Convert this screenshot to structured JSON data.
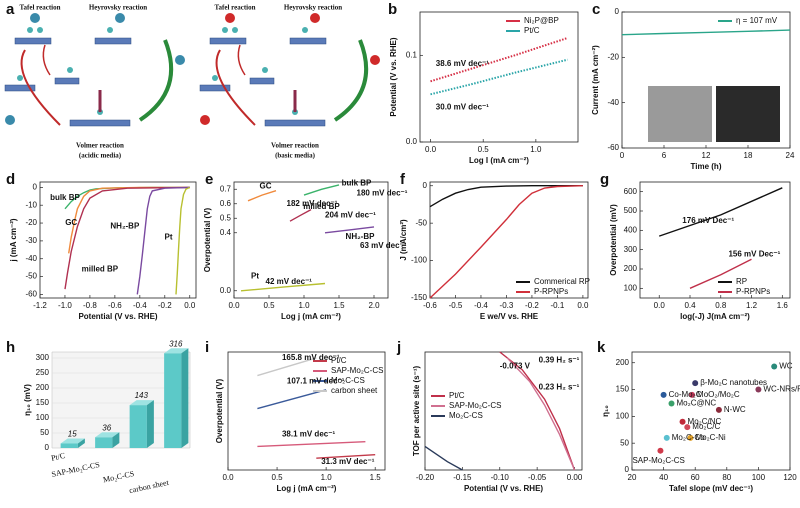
{
  "chart_data": [
    {
      "type": "diagram",
      "panel": "a",
      "schemes": [
        {
          "tafel": "Tafel reaction",
          "heyrovsky": "Heyrovsky reaction",
          "volmer": "Volmer reaction",
          "media": "(acidic media)"
        },
        {
          "tafel": "Tafel reaction",
          "heyrovsky": "Heyrovsky reaction",
          "volmer": "Volmer reaction",
          "media": "(basic media)"
        }
      ]
    },
    {
      "type": "line",
      "panel": "b",
      "xlabel": "Log I (mA cm⁻²)",
      "ylabel": "Potential (V vs. RHE)",
      "xlim": [
        -0.1,
        1.4
      ],
      "xticks": [
        {
          "value": 0,
          "label": "0.0"
        },
        0.5,
        {
          "value": 1,
          "label": "1.0"
        }
      ],
      "ylim": [
        0,
        0.15
      ],
      "yticks": [
        {
          "value": 0,
          "label": "0.0"
        },
        0.1
      ],
      "legend": "upper right",
      "series": [
        {
          "name": "Ni₂P@BP",
          "color": "#d62f45",
          "style": "dotted",
          "x": [
            0,
            0.4,
            0.8,
            1.3
          ],
          "values": [
            0.07,
            0.085,
            0.1,
            0.12
          ]
        },
        {
          "name": "Pt/C",
          "color": "#2aa5a8",
          "style": "dotted",
          "x": [
            0,
            0.4,
            0.8,
            1.3
          ],
          "values": [
            0.055,
            0.067,
            0.08,
            0.095
          ]
        }
      ],
      "annotations": [
        "38.6 mV dec⁻¹",
        "30.0 mV dec⁻¹"
      ]
    },
    {
      "type": "line",
      "panel": "c",
      "xlabel": "Time (h)",
      "ylabel": "Current (mA cm⁻²)",
      "xlim": [
        0,
        24
      ],
      "xticks": [
        0,
        6,
        12,
        18,
        24
      ],
      "ylim": [
        -60,
        0
      ],
      "yticks": [
        0,
        -20,
        -40,
        -60
      ],
      "legend": "upper right",
      "series": [
        {
          "name": "η = 107 mV",
          "color": "#2aa58a",
          "x": [
            0,
            6,
            12,
            18,
            24
          ],
          "values": [
            -10,
            -9.5,
            -9,
            -8.5,
            -8
          ]
        }
      ]
    },
    {
      "type": "line",
      "panel": "d",
      "xlabel": "Potential (V vs. RHE)",
      "ylabel": "j (mA cm⁻²)",
      "xlim": [
        -1.2,
        0.05
      ],
      "xticks": [
        -1.2,
        {
          "value": -1,
          "label": "-1.0"
        },
        -0.8,
        -0.6,
        -0.4,
        -0.2,
        {
          "value": 0,
          "label": "0.0"
        }
      ],
      "ylim": [
        -62,
        3
      ],
      "yticks": [
        0,
        -10,
        -20,
        -30,
        -40,
        -50,
        -60
      ],
      "series": [
        {
          "name": "bulk BP",
          "color": "#3bb36b",
          "x": [
            -1.0,
            -0.95,
            -0.9,
            -0.85,
            -0.8,
            -0.75,
            -0.6,
            -0.3,
            0
          ],
          "values": [
            -12,
            -8,
            -5,
            -3,
            -1.5,
            -0.8,
            -0.3,
            -0.1,
            0
          ]
        },
        {
          "name": "GC",
          "color": "#f08a3c",
          "x": [
            -0.97,
            -0.95,
            -0.92,
            -0.9,
            -0.85,
            -0.8,
            -0.7,
            -0.4,
            0
          ],
          "values": [
            -37,
            -28,
            -18,
            -12,
            -5,
            -2,
            -0.5,
            -0.1,
            0
          ]
        },
        {
          "name": "milled BP",
          "color": "#b03050",
          "x": [
            -1.0,
            -0.98,
            -0.95,
            -0.9,
            -0.85,
            -0.8,
            -0.7,
            -0.5,
            0
          ],
          "values": [
            -57,
            -48,
            -36,
            -22,
            -12,
            -6,
            -2,
            -0.5,
            0
          ]
        },
        {
          "name": "NH₂-BP",
          "color": "#7a4aa0",
          "x": [
            -0.42,
            -0.4,
            -0.38,
            -0.36,
            -0.34,
            -0.32,
            -0.3,
            -0.2,
            0
          ],
          "values": [
            -60,
            -50,
            -38,
            -25,
            -12,
            -5,
            -2,
            -0.5,
            0
          ]
        },
        {
          "name": "Pt",
          "color": "#b8c030",
          "x": [
            -0.11,
            -0.1,
            -0.09,
            -0.08,
            -0.07,
            -0.05,
            -0.03,
            0
          ],
          "values": [
            -60,
            -48,
            -35,
            -22,
            -12,
            -4,
            -1,
            0
          ]
        }
      ]
    },
    {
      "type": "line",
      "panel": "e",
      "xlabel": "Log j (mA cm⁻²)",
      "ylabel": "Overpotential (V)",
      "xlim": [
        0,
        2.2
      ],
      "xticks": [
        {
          "value": 0,
          "label": "0.0"
        },
        0.5,
        {
          "value": 1,
          "label": "1.0"
        },
        1.5,
        {
          "value": 2,
          "label": "2.0"
        }
      ],
      "ylim": [
        -0.05,
        0.75
      ],
      "yticks": [
        {
          "value": 0,
          "label": "0.0"
        },
        0.4,
        0.5,
        0.6,
        0.7
      ],
      "series": [
        {
          "name": "GC",
          "color": "#f08a3c",
          "x": [
            0.2,
            0.4,
            0.6
          ],
          "values": [
            0.62,
            0.66,
            0.69
          ]
        },
        {
          "name": "bulk BP",
          "color": "#3bb36b",
          "x": [
            1.0,
            1.25,
            1.5
          ],
          "values": [
            0.66,
            0.7,
            0.73
          ]
        },
        {
          "name": "milled BP",
          "color": "#b03050",
          "x": [
            0.8,
            0.95,
            1.1
          ],
          "values": [
            0.48,
            0.52,
            0.56
          ]
        },
        {
          "name": "NH₂-BP",
          "color": "#7a4aa0",
          "x": [
            1.3,
            1.65,
            2.0
          ],
          "values": [
            0.4,
            0.42,
            0.44
          ]
        },
        {
          "name": "Pt",
          "color": "#b8c030",
          "x": [
            0.1,
            0.7,
            1.3
          ],
          "values": [
            0.0,
            0.025,
            0.05
          ]
        }
      ],
      "annotations": [
        "182 mV dec⁻¹",
        "180 mV dec⁻¹",
        "204 mV dec⁻¹",
        "63 mV dec⁻¹",
        "42 mV dec⁻¹"
      ]
    },
    {
      "type": "line",
      "panel": "f",
      "xlabel": "E we/V vs. RHE",
      "ylabel": "J (mA/cm²)",
      "xlim": [
        -0.6,
        0.02
      ],
      "xticks": [
        -0.6,
        -0.5,
        -0.4,
        -0.3,
        -0.2,
        -0.1,
        {
          "value": 0,
          "label": "0.0"
        }
      ],
      "ylim": [
        -150,
        5
      ],
      "yticks": [
        0,
        -50,
        -100,
        -150
      ],
      "legend": "lower right",
      "series": [
        {
          "name": "Commerical RP",
          "color": "#111111",
          "x": [
            -0.6,
            -0.55,
            -0.5,
            -0.45,
            -0.4,
            -0.3,
            -0.2,
            0
          ],
          "values": [
            -28,
            -18,
            -10,
            -5,
            -2,
            -0.5,
            0,
            0
          ]
        },
        {
          "name": "P-RPNPs",
          "color": "#d0303a",
          "x": [
            -0.6,
            -0.5,
            -0.4,
            -0.3,
            -0.25,
            -0.2,
            -0.15,
            -0.1,
            0
          ],
          "values": [
            -150,
            -118,
            -82,
            -45,
            -25,
            -10,
            -3,
            -1,
            0
          ]
        }
      ]
    },
    {
      "type": "line",
      "panel": "g",
      "xlabel": "log(-J) J(mA cm⁻²)",
      "ylabel": "Overpotential (mV)",
      "xlim": [
        -0.25,
        1.7
      ],
      "xticks": [
        {
          "value": 0,
          "label": "0.0"
        },
        0.4,
        0.8,
        1.2,
        1.6
      ],
      "ylim": [
        50,
        650
      ],
      "yticks": [
        100,
        200,
        300,
        400,
        500,
        600
      ],
      "legend": "lower right",
      "series": [
        {
          "name": "RP",
          "color": "#111111",
          "x": [
            0,
            0.8,
            1.6
          ],
          "values": [
            370,
            480,
            620
          ]
        },
        {
          "name": "P-RPNPs",
          "color": "#c0304a",
          "x": [
            0.4,
            0.8,
            1.2
          ],
          "values": [
            100,
            170,
            250
          ]
        }
      ],
      "annotations": [
        "176 mV Dec⁻¹",
        "156 mV Dec⁻¹"
      ]
    },
    {
      "type": "bar3d",
      "panel": "h",
      "ylabel": "η₁₀ (mV)",
      "color": "#5cc9c8",
      "categories": [
        "Pt/C",
        "SAP-Mo₂C-CS",
        "Mo₂C-CS",
        "carbon sheet"
      ],
      "values": [
        15,
        36,
        143,
        316
      ],
      "ylim": [
        0,
        320
      ],
      "yticks": [
        0,
        50,
        100,
        150,
        200,
        250,
        300
      ]
    },
    {
      "type": "line",
      "panel": "i",
      "xlabel": "Log j (mA cm⁻²)",
      "ylabel": "Overpotential (V)",
      "xlim": [
        0,
        1.6
      ],
      "xticks": [
        {
          "value": 0,
          "label": "0.0"
        },
        0.5,
        {
          "value": 1,
          "label": "1.0"
        },
        1.5
      ],
      "ylim": [
        0,
        1
      ],
      "yticks": [],
      "legend": "upper right",
      "series": [
        {
          "name": "Pt/C",
          "color": "#c23a4a",
          "x": [
            0.9,
            1.5
          ],
          "values": [
            0.1,
            0.13
          ]
        },
        {
          "name": "SAP-Mo₂C-CS",
          "color": "#d65a7a",
          "x": [
            0.3,
            1.4
          ],
          "values": [
            0.2,
            0.24
          ]
        },
        {
          "name": "Mo₂C-CS",
          "color": "#3a5a9a",
          "x": [
            0.3,
            1.0
          ],
          "values": [
            0.52,
            0.68
          ]
        },
        {
          "name": "carbon sheet",
          "color": "#c8c8c8",
          "x": [
            0.3,
            0.9
          ],
          "values": [
            0.8,
            0.95
          ]
        }
      ],
      "annotations": [
        "165.8 mV dec⁻¹",
        "107.1 mV dec⁻¹",
        "38.1 mV dec⁻¹",
        "31.3 mV dec⁻¹"
      ]
    },
    {
      "type": "line",
      "panel": "j",
      "xlabel": "Potential (V vs. RHE)",
      "ylabel": "TOF per active site (s⁻¹)",
      "xlim": [
        -0.2,
        0.01
      ],
      "xticks": [
        {
          "value": -0.2,
          "label": "-0.20"
        },
        -0.15,
        {
          "value": -0.1,
          "label": "-0.10"
        },
        -0.05,
        {
          "value": 0,
          "label": "0.00"
        }
      ],
      "ylim": [
        0,
        1
      ],
      "yticks": [],
      "legend": "middle left",
      "series": [
        {
          "name": "Pt/C",
          "color": "#c0304a",
          "x": [
            -0.1,
            -0.07,
            -0.04,
            -0.02,
            0
          ],
          "values": [
            1,
            0.85,
            0.6,
            0.35,
            0
          ]
        },
        {
          "name": "SAP-Mo₂C-CS",
          "color": "#d07090",
          "x": [
            -0.09,
            -0.06,
            -0.04,
            -0.02,
            0
          ],
          "values": [
            0.95,
            0.75,
            0.55,
            0.3,
            0
          ]
        },
        {
          "name": "Mo₂C-CS",
          "color": "#2a3a5a",
          "x": [
            -0.2,
            -0.17,
            -0.15
          ],
          "values": [
            0.2,
            0.07,
            0
          ]
        }
      ],
      "annotations": [
        "-0.073 V",
        "0.39 H₂ s⁻¹",
        "0.23 H₂ s⁻¹"
      ]
    },
    {
      "type": "scatter",
      "panel": "k",
      "xlabel": "Tafel slope (mV dec⁻¹)",
      "ylabel": "η₁₀",
      "xlim": [
        20,
        120
      ],
      "xticks": [
        20,
        40,
        60,
        80,
        100,
        120
      ],
      "ylim": [
        0,
        220
      ],
      "yticks": [
        0,
        50,
        100,
        150,
        200
      ],
      "points": [
        {
          "label": "WC",
          "x": 110,
          "y": 193,
          "color": "#2a8a7a"
        },
        {
          "label": "WC-NRs/RGO",
          "x": 100,
          "y": 150,
          "color": "#8a3a5a"
        },
        {
          "label": "N-WC",
          "x": 75,
          "y": 112,
          "color": "#8a2a3a"
        },
        {
          "label": "β-Mo₂C nanotubes",
          "x": 60,
          "y": 162,
          "color": "#3a3a6a"
        },
        {
          "label": "MoO₂/Mo₂C",
          "x": 58,
          "y": 140,
          "color": "#c03a5a"
        },
        {
          "label": "Co-Mo₂C",
          "x": 40,
          "y": 140,
          "color": "#2a5a9a"
        },
        {
          "label": "Mo₂C@NC",
          "x": 45,
          "y": 124,
          "color": "#3aa06a"
        },
        {
          "label": "Mo₂C/NC",
          "x": 52,
          "y": 90,
          "color": "#c02a3a"
        },
        {
          "label": "Mo₂C/C",
          "x": 55,
          "y": 80,
          "color": "#d04a5a"
        },
        {
          "label": "Mo₂C-Ni",
          "x": 57,
          "y": 60,
          "color": "#e0a02a"
        },
        {
          "label": "Mo₂C-Co",
          "x": 42,
          "y": 60,
          "color": "#5ac0d0"
        },
        {
          "label": "SAP-Mo₂C-CS",
          "x": 38,
          "y": 36,
          "color": "#d03a4a"
        }
      ]
    }
  ]
}
